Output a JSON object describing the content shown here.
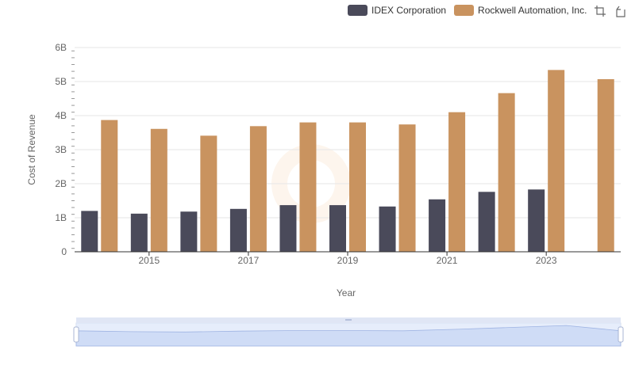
{
  "legend": {
    "items": [
      {
        "label": "IDEX Corporation",
        "color": "#4a4a5a"
      },
      {
        "label": "Rockwell Automation, Inc.",
        "color": "#c9935f"
      }
    ]
  },
  "toolbox": {
    "icons": [
      "zoom-icon",
      "restore-icon"
    ]
  },
  "chart_data": {
    "type": "bar",
    "xlabel": "Year",
    "ylabel": "Cost of Revenue",
    "categories": [
      "2014",
      "2015",
      "2016",
      "2017",
      "2018",
      "2019",
      "2020",
      "2021",
      "2022",
      "2023",
      "2024"
    ],
    "x_tick_labels": [
      "2015",
      "2017",
      "2019",
      "2021",
      "2023"
    ],
    "y_tick_labels": [
      "0",
      "1B",
      "2B",
      "3B",
      "4B",
      "5B",
      "6B"
    ],
    "ylim": [
      0,
      6000000000
    ],
    "grid": true,
    "legend_position": "top-right",
    "series": [
      {
        "name": "IDEX Corporation",
        "color": "#4a4a5a",
        "values": [
          1200000000,
          1120000000,
          1180000000,
          1260000000,
          1370000000,
          1370000000,
          1330000000,
          1540000000,
          1760000000,
          1830000000,
          null
        ]
      },
      {
        "name": "Rockwell Automation, Inc.",
        "color": "#c9935f",
        "values": [
          3870000000,
          3610000000,
          3410000000,
          3690000000,
          3800000000,
          3800000000,
          3740000000,
          4100000000,
          4660000000,
          5340000000,
          5070000000
        ]
      }
    ],
    "data_zoom": {
      "start": 0,
      "end": 100
    }
  }
}
